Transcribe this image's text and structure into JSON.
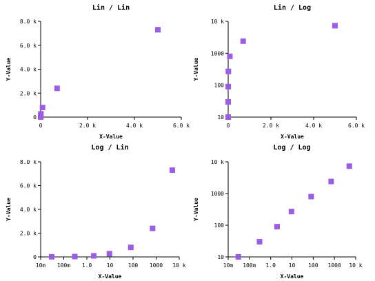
{
  "chart_data": [
    {
      "type": "scatter",
      "title": "Lin / Lin",
      "xlabel": "X-Value",
      "ylabel": "Y-Value",
      "xscale": "linear",
      "yscale": "linear",
      "xlim": [
        0,
        6000
      ],
      "ylim": [
        0,
        8000
      ],
      "xticks": [
        0,
        2000,
        4000,
        6000
      ],
      "xticklabels": [
        "0",
        "2.0 k",
        "4.0 k",
        "6.0 k"
      ],
      "yticks": [
        0,
        2000,
        4000,
        6000,
        8000
      ],
      "yticklabels": [
        "0",
        "2.0 k",
        "4.0 k",
        "6.0 k",
        "8.0 k"
      ],
      "color": "#9b5de5",
      "x": [
        0.03,
        0.3,
        2,
        9.5,
        80,
        700,
        5000
      ],
      "y": [
        10,
        30,
        90,
        270,
        800,
        2400,
        7300
      ]
    },
    {
      "type": "scatter",
      "title": "Lin / Log",
      "xlabel": "X-Value",
      "ylabel": "Y-Value",
      "xscale": "linear",
      "yscale": "log",
      "xlim": [
        0,
        6000
      ],
      "ylim": [
        10,
        10000
      ],
      "xticks": [
        0,
        2000,
        4000,
        6000
      ],
      "xticklabels": [
        "0",
        "2.0 k",
        "4.0 k",
        "6.0 k"
      ],
      "yticks": [
        10,
        100,
        1000,
        10000
      ],
      "yticklabels": [
        "10",
        "100",
        "1000",
        "10 k"
      ],
      "color": "#9b5de5",
      "x": [
        0.03,
        0.3,
        2,
        9.5,
        80,
        700,
        5000
      ],
      "y": [
        10,
        30,
        90,
        270,
        800,
        2400,
        7300
      ]
    },
    {
      "type": "scatter",
      "title": "Log / Lin",
      "xlabel": "X-Value",
      "ylabel": "Y-Value",
      "xscale": "log",
      "yscale": "linear",
      "xlim": [
        0.01,
        10000
      ],
      "ylim": [
        0,
        8000
      ],
      "xticks": [
        0.01,
        0.1,
        1,
        10,
        100,
        1000,
        10000
      ],
      "xticklabels": [
        "10m",
        "100m",
        "1.0",
        "10",
        "100",
        "1000",
        "10 k"
      ],
      "yticks": [
        0,
        2000,
        4000,
        6000,
        8000
      ],
      "yticklabels": [
        "0",
        "2.0 k",
        "4.0 k",
        "6.0 k",
        "8.0 k"
      ],
      "color": "#9b5de5",
      "x": [
        0.03,
        0.3,
        2,
        9.5,
        80,
        700,
        5000
      ],
      "y": [
        10,
        30,
        90,
        270,
        800,
        2400,
        7300
      ]
    },
    {
      "type": "scatter",
      "title": "Log / Log",
      "xlabel": "X-Value",
      "ylabel": "Y-Value",
      "xscale": "log",
      "yscale": "log",
      "xlim": [
        0.01,
        10000
      ],
      "ylim": [
        10,
        10000
      ],
      "xticks": [
        0.01,
        0.1,
        1,
        10,
        100,
        1000,
        10000
      ],
      "xticklabels": [
        "10m",
        "100m",
        "1.0",
        "10",
        "100",
        "1000",
        "10 k"
      ],
      "yticks": [
        10,
        100,
        1000,
        10000
      ],
      "yticklabels": [
        "10",
        "100",
        "1000",
        "10 k"
      ],
      "color": "#9b5de5",
      "x": [
        0.03,
        0.3,
        2,
        9.5,
        80,
        700,
        5000
      ],
      "y": [
        10,
        30,
        90,
        270,
        800,
        2400,
        7300
      ]
    }
  ]
}
